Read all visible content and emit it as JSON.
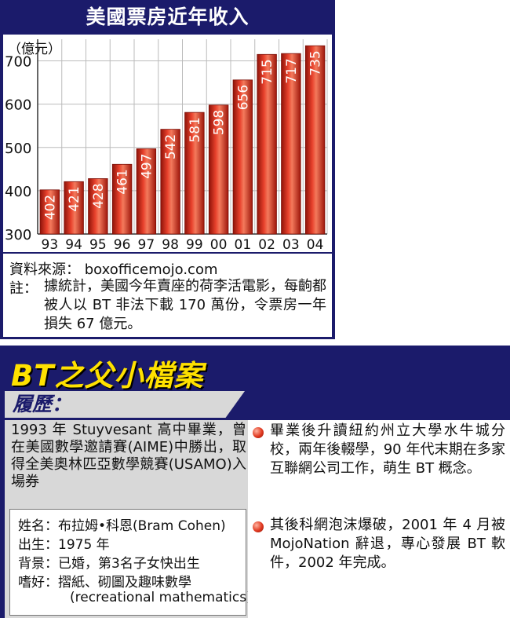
{
  "chart_panel": {
    "title": "美國票房近年收入",
    "unit_label": "（億元）",
    "source": "資料來源： boxofficemojo.com",
    "note_label": "註：",
    "note": "據統計，美國今年賣座的荷李活電影，每齣都被人以 BT 非法下載 170 萬份，令票房一年損失 67 億元。"
  },
  "chart_data": {
    "type": "bar",
    "categories": [
      "93",
      "94",
      "95",
      "96",
      "97",
      "98",
      "99",
      "00",
      "01",
      "02",
      "03",
      "04"
    ],
    "values": [
      402,
      421,
      428,
      461,
      497,
      542,
      581,
      598,
      656,
      715,
      717,
      735
    ],
    "ylabel": "（億元）",
    "ylim": [
      300,
      750
    ],
    "yticks": [
      300,
      400,
      500,
      600,
      700
    ],
    "grid": true,
    "bar_color": "#d0281b"
  },
  "profile": {
    "title": "BT之父小檔案",
    "resume_label": "履歷：",
    "resume_text": "1993 年 Stuyvesant 高中畢業，曾在美國數學邀請賽(AIME)中勝出，取得全美奧林匹亞數學競賽(USAMO)入場券",
    "info": [
      {
        "label": "姓名：",
        "value": "布拉姆•科恩(Bram Cohen)"
      },
      {
        "label": "出生：",
        "value": "1975 年"
      },
      {
        "label": "背景：",
        "value": "已婚，第3名子女快出生"
      },
      {
        "label": "嗜好：",
        "value": "摺紙、砌圖及趣味數學"
      },
      {
        "label": "",
        "value": "(recreational mathematics)"
      }
    ],
    "bullets": [
      "畢業後升讀紐約州立大學水牛城分校，兩年後輟學，90 年代末期在多家互聯網公司工作，萌生 BT 概念。",
      "其後科網泡沫爆破，2001 年 4 月被 MojoNation 辭退，專心發展 BT 軟件，2002 年完成。"
    ]
  }
}
